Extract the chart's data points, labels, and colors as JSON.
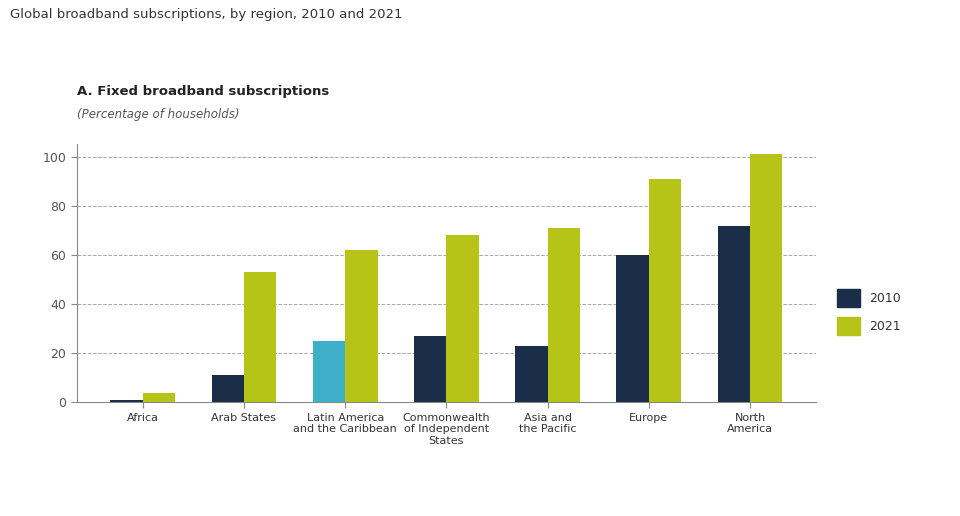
{
  "title": "Global broadband subscriptions, by region, 2010 and 2021",
  "subtitle": "A. Fixed broadband subscriptions",
  "subtitle2": "(Percentage of households)",
  "categories": [
    "Africa",
    "Arab States",
    "Latin America\nand the Caribbean",
    "Commonwealth\nof Independent\nStates",
    "Asia and\nthe Pacific",
    "Europe",
    "North\nAmerica"
  ],
  "values_2010": [
    1,
    11,
    25,
    27,
    23,
    60,
    72
  ],
  "values_2021": [
    4,
    53,
    62,
    68,
    71,
    91,
    101
  ],
  "color_2010_default": "#1a2e4a",
  "color_2010_latam": "#3dafc8",
  "color_2021": "#b5c417",
  "ylim": [
    0,
    105
  ],
  "yticks": [
    0,
    20,
    40,
    60,
    80,
    100
  ],
  "legend_labels": [
    "2010",
    "2021"
  ],
  "background_color": "#ffffff",
  "bar_width": 0.32
}
